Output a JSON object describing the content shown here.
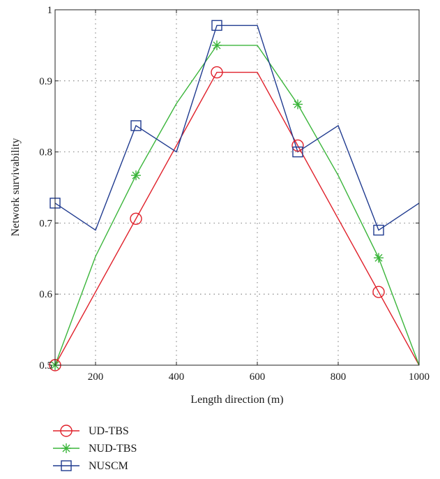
{
  "chart_data": {
    "type": "line",
    "title": "",
    "xlabel": "Length direction (m)",
    "ylabel": "Network survivability",
    "xlim": [
      100,
      1000
    ],
    "ylim": [
      0.5,
      1
    ],
    "xticks": [
      200,
      400,
      600,
      800,
      1000
    ],
    "xtick_labels": [
      "200",
      "400",
      "600",
      "800",
      "1000"
    ],
    "yticks": [
      0.5,
      0.6,
      0.7,
      0.8,
      0.9,
      1
    ],
    "ytick_labels": [
      "0.5",
      "0.6",
      "0.7",
      "0.8",
      "0.9",
      "1"
    ],
    "grid": true,
    "legend_position": "below",
    "series": [
      {
        "name": "UD-TBS",
        "color": "#e0202a",
        "marker": "circle",
        "x": [
          100,
          500,
          600,
          1000
        ],
        "y": [
          0.5,
          0.912,
          0.912,
          0.5
        ],
        "marker_x": [
          100,
          300,
          500,
          700,
          900
        ],
        "marker_y": [
          0.5,
          0.706,
          0.912,
          0.809,
          0.603
        ]
      },
      {
        "name": "NUD-TBS",
        "color": "#3ab53a",
        "marker": "asterisk",
        "x": [
          100,
          200,
          300,
          400,
          500,
          600,
          700,
          800,
          900,
          1000
        ],
        "y": [
          0.5,
          0.653,
          0.767,
          0.868,
          0.95,
          0.95,
          0.867,
          0.767,
          0.651,
          0.5
        ],
        "marker_x": [
          100,
          300,
          500,
          700,
          900
        ],
        "marker_y": [
          0.5,
          0.767,
          0.95,
          0.867,
          0.651
        ]
      },
      {
        "name": "NUSCM",
        "color": "#1f3a8f",
        "marker": "square",
        "x": [
          100,
          200,
          300,
          400,
          500,
          600,
          700,
          800,
          900,
          1000
        ],
        "y": [
          0.728,
          0.69,
          0.837,
          0.8,
          0.978,
          0.978,
          0.8,
          0.837,
          0.69,
          0.728
        ],
        "marker_x": [
          100,
          300,
          500,
          700,
          900
        ],
        "marker_y": [
          0.728,
          0.837,
          0.978,
          0.8,
          0.69
        ]
      }
    ]
  }
}
